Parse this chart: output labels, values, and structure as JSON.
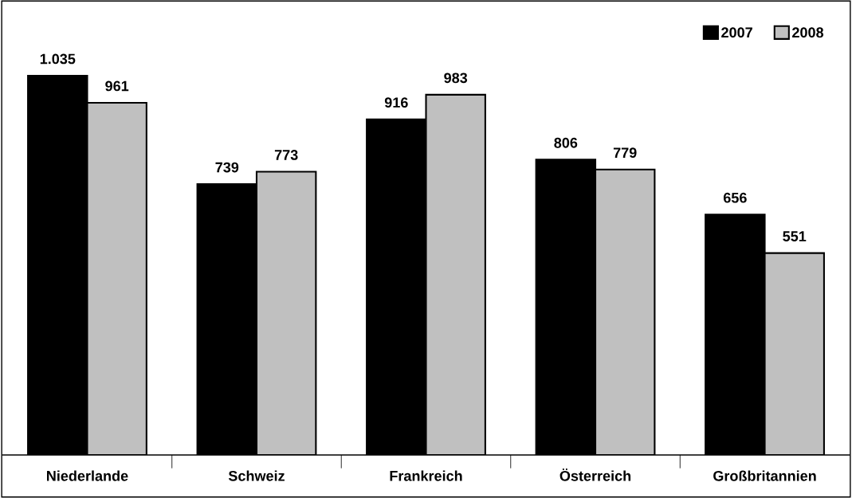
{
  "chart_data": {
    "type": "bar",
    "categories": [
      "Niederlande",
      "Schweiz",
      "Frankreich",
      "Österreich",
      "Großbritannien"
    ],
    "series": [
      {
        "name": "2007",
        "color": "#000000",
        "values": [
          1035,
          739,
          916,
          806,
          656
        ],
        "value_labels": [
          "1.035",
          "739",
          "916",
          "806",
          "656"
        ]
      },
      {
        "name": "2008",
        "color": "#c0c0c0",
        "values": [
          961,
          773,
          983,
          779,
          551
        ],
        "value_labels": [
          "961",
          "773",
          "983",
          "779",
          "551"
        ]
      }
    ],
    "legend": "top right",
    "grid": false
  }
}
